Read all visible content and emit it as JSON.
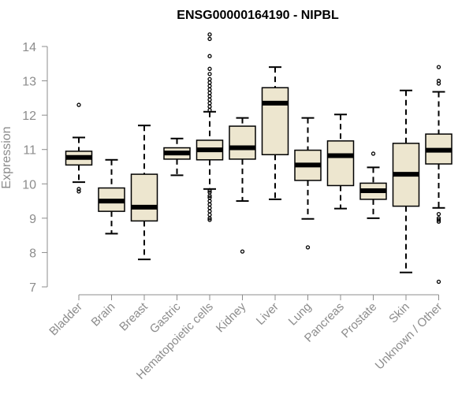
{
  "chart_data": {
    "type": "box",
    "title": "ENSG00000164190 - NIPBL",
    "xlabel": "",
    "ylabel": "Expression",
    "ylim": [
      7,
      14
    ],
    "yticks": [
      7,
      8,
      9,
      10,
      11,
      12,
      13,
      14
    ],
    "ytick_labels": [
      "7",
      "8",
      "9",
      "10",
      "11",
      "12",
      "13",
      "14"
    ],
    "grid": false,
    "legend": "none",
    "colors": {
      "box_fill": "#ede6cf",
      "stroke": "#000000",
      "axis_text": "#8c8c8c"
    },
    "categories": [
      "Bladder",
      "Brain",
      "Breast",
      "Gastric",
      "Hematopoietic cells",
      "Kidney",
      "Liver",
      "Lung",
      "Pancreas",
      "Prostate",
      "Skin",
      "Unknown / Other"
    ],
    "boxes": [
      {
        "whisker_low": 10.05,
        "q1": 10.55,
        "median": 10.77,
        "q3": 10.95,
        "whisker_high": 11.35,
        "outliers": [
          12.3,
          9.85,
          9.78
        ]
      },
      {
        "whisker_low": 8.55,
        "q1": 9.2,
        "median": 9.5,
        "q3": 9.88,
        "whisker_high": 10.7,
        "outliers": []
      },
      {
        "whisker_low": 7.8,
        "q1": 8.92,
        "median": 9.32,
        "q3": 10.28,
        "whisker_high": 11.7,
        "outliers": []
      },
      {
        "whisker_low": 10.25,
        "q1": 10.72,
        "median": 10.9,
        "q3": 11.05,
        "whisker_high": 11.32,
        "outliers": []
      },
      {
        "whisker_low": 9.85,
        "q1": 10.7,
        "median": 10.99,
        "q3": 11.27,
        "whisker_high": 12.1,
        "outliers": [
          14.35,
          14.22,
          13.72,
          13.35,
          13.2,
          13.05,
          12.95,
          12.85,
          12.75,
          12.65,
          12.55,
          12.45,
          12.35,
          12.25,
          12.15,
          9.8,
          9.75,
          9.65,
          9.6,
          9.5,
          9.4,
          9.3,
          9.2,
          9.1,
          9.0,
          8.95
        ]
      },
      {
        "whisker_low": 9.5,
        "q1": 10.72,
        "median": 11.05,
        "q3": 11.68,
        "whisker_high": 11.92,
        "outliers": [
          8.03
        ]
      },
      {
        "whisker_low": 9.55,
        "q1": 10.85,
        "median": 12.35,
        "q3": 12.8,
        "whisker_high": 13.4,
        "outliers": []
      },
      {
        "whisker_low": 8.98,
        "q1": 10.1,
        "median": 10.55,
        "q3": 10.98,
        "whisker_high": 11.92,
        "outliers": [
          8.15
        ]
      },
      {
        "whisker_low": 9.28,
        "q1": 9.95,
        "median": 10.82,
        "q3": 11.25,
        "whisker_high": 12.02,
        "outliers": []
      },
      {
        "whisker_low": 9.0,
        "q1": 9.55,
        "median": 9.8,
        "q3": 10.02,
        "whisker_high": 10.48,
        "outliers": [
          10.88
        ]
      },
      {
        "whisker_low": 7.42,
        "q1": 9.35,
        "median": 10.28,
        "q3": 11.18,
        "whisker_high": 12.72,
        "outliers": []
      },
      {
        "whisker_low": 9.3,
        "q1": 10.58,
        "median": 10.98,
        "q3": 11.45,
        "whisker_high": 12.68,
        "outliers": [
          13.4,
          13.0,
          12.92,
          9.12,
          9.0,
          8.95,
          8.9,
          7.15
        ]
      }
    ]
  }
}
